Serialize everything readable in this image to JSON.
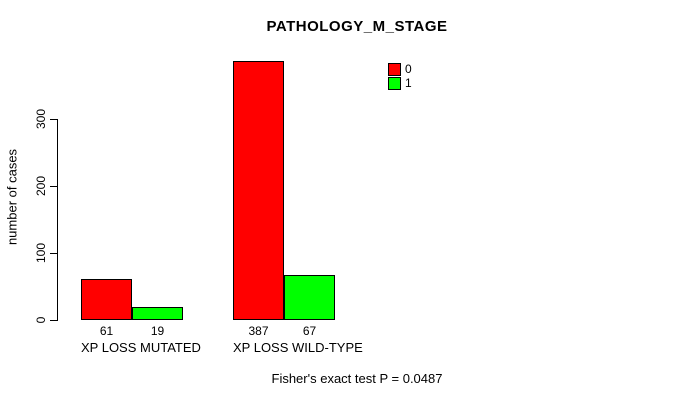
{
  "chart_data": {
    "type": "bar",
    "title": "PATHOLOGY_M_STAGE",
    "ylabel": "number of cases",
    "xlabel": "",
    "categories": [
      "XP LOSS MUTATED",
      "XP LOSS WILD-TYPE"
    ],
    "series": [
      {
        "name": "0",
        "color": "#ff0000",
        "values": [
          61,
          387
        ]
      },
      {
        "name": "1",
        "color": "#00ff00",
        "values": [
          19,
          67
        ]
      }
    ],
    "yticks": [
      0,
      100,
      200,
      300
    ],
    "ylim": [
      0,
      390
    ],
    "grid": false,
    "legend_position": "top-right",
    "bar_borders": "#000000",
    "annotation": "Fisher's exact test P = 0.0487"
  },
  "colors": {
    "background": "#ffffff",
    "text": "#000000",
    "series_0": "#ff0000",
    "series_1": "#00ff00"
  }
}
